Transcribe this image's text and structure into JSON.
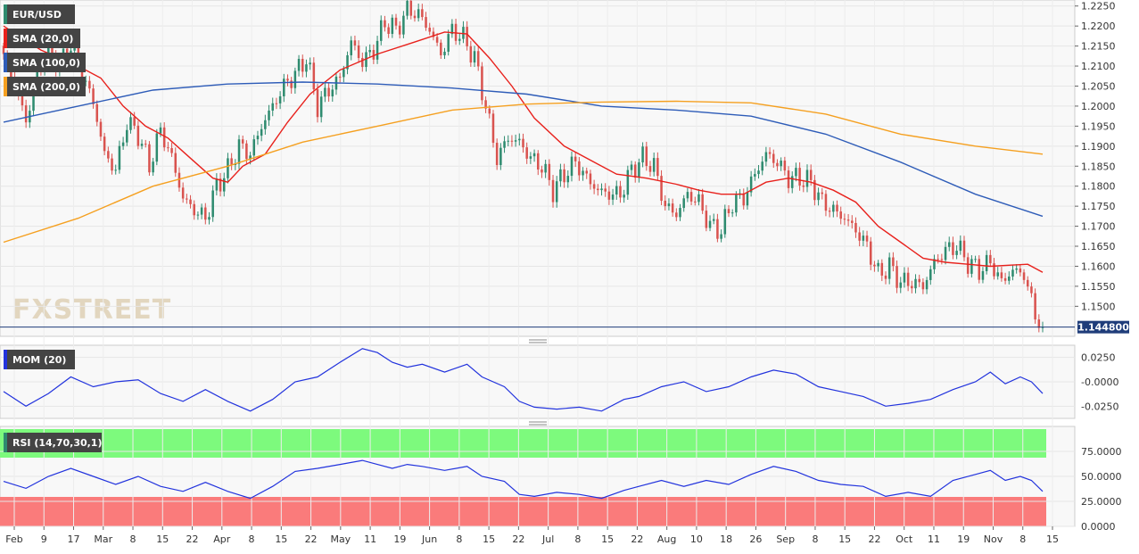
{
  "instrument": "EUR/USD",
  "last_price": "1.144800",
  "watermark": "FXSTREET",
  "colors": {
    "bull": "#2e8b6f",
    "bear": "#d9534f",
    "sma20": "#e8211c",
    "sma100": "#2e5cb8",
    "sma200": "#f5a020",
    "momentum": "#2233dd",
    "rsi": "#2233dd",
    "rsi_overbought_zone": "#7dfa7d",
    "rsi_oversold_zone": "#fa7b7b",
    "price_line": "#1f3d7a"
  },
  "legend": {
    "pair": "EUR/USD",
    "sma20": "SMA (20,0)",
    "sma100": "SMA (100,0)",
    "sma200": "SMA (200,0)",
    "momentum": "MOM (20)",
    "rsi": "RSI (14,70,30,1)"
  },
  "chart_data": [
    {
      "type": "candlestick",
      "title": "EUR/USD",
      "ylim": [
        1.1425,
        1.2265
      ],
      "y_ticks": [
        "1.2250",
        "1.2200",
        "1.2150",
        "1.2100",
        "1.2050",
        "1.2000",
        "1.1950",
        "1.1900",
        "1.1850",
        "1.1800",
        "1.1750",
        "1.1700",
        "1.1650",
        "1.1600",
        "1.1550",
        "1.1500"
      ],
      "x_labels": [
        "Feb",
        "9",
        "17",
        "Mar",
        "8",
        "15",
        "22",
        "Apr",
        "8",
        "15",
        "22",
        "May",
        "11",
        "19",
        "Jun",
        "8",
        "15",
        "22",
        "Jul",
        "8",
        "15",
        "22",
        "Aug",
        "10",
        "18",
        "26",
        "Sep",
        "8",
        "15",
        "22",
        "Oct",
        "11",
        "19",
        "Nov",
        "8",
        "15"
      ],
      "last_value": 1.1448,
      "close_path": [
        [
          0,
          1.212
        ],
        [
          3,
          1.206
        ],
        [
          6,
          1.196
        ],
        [
          9,
          1.209
        ],
        [
          12,
          1.214
        ],
        [
          15,
          1.2105
        ],
        [
          18,
          1.215
        ],
        [
          21,
          1.208
        ],
        [
          24,
          1.201
        ],
        [
          27,
          1.188
        ],
        [
          30,
          1.184
        ],
        [
          33,
          1.196
        ],
        [
          36,
          1.193
        ],
        [
          39,
          1.185
        ],
        [
          42,
          1.194
        ],
        [
          45,
          1.187
        ],
        [
          48,
          1.177
        ],
        [
          51,
          1.174
        ],
        [
          54,
          1.172
        ],
        [
          57,
          1.18
        ],
        [
          60,
          1.184
        ],
        [
          63,
          1.19
        ],
        [
          66,
          1.188
        ],
        [
          69,
          1.195
        ],
        [
          72,
          1.2
        ],
        [
          75,
          1.205
        ],
        [
          78,
          1.208
        ],
        [
          81,
          1.212
        ],
        [
          84,
          1.2
        ],
        [
          87,
          1.204
        ],
        [
          90,
          1.207
        ],
        [
          93,
          1.216
        ],
        [
          96,
          1.211
        ],
        [
          99,
          1.214
        ],
        [
          102,
          1.221
        ],
        [
          105,
          1.219
        ],
        [
          108,
          1.224
        ],
        [
          111,
          1.223
        ],
        [
          114,
          1.219
        ],
        [
          117,
          1.213
        ],
        [
          120,
          1.219
        ],
        [
          123,
          1.217
        ],
        [
          126,
          1.212
        ],
        [
          129,
          1.2
        ],
        [
          132,
          1.187
        ],
        [
          135,
          1.192
        ],
        [
          138,
          1.191
        ],
        [
          141,
          1.187
        ],
        [
          144,
          1.185
        ],
        [
          147,
          1.179
        ],
        [
          150,
          1.183
        ],
        [
          153,
          1.186
        ],
        [
          156,
          1.182
        ],
        [
          159,
          1.179
        ],
        [
          162,
          1.178
        ],
        [
          165,
          1.178
        ],
        [
          168,
          1.184
        ],
        [
          171,
          1.187
        ],
        [
          174,
          1.185
        ],
        [
          177,
          1.175
        ],
        [
          180,
          1.173
        ],
        [
          183,
          1.178
        ],
        [
          186,
          1.176
        ],
        [
          189,
          1.17
        ],
        [
          192,
          1.169
        ],
        [
          195,
          1.176
        ],
        [
          198,
          1.177
        ],
        [
          201,
          1.183
        ],
        [
          204,
          1.188
        ],
        [
          207,
          1.186
        ],
        [
          210,
          1.182
        ],
        [
          213,
          1.182
        ],
        [
          216,
          1.181
        ],
        [
          219,
          1.176
        ],
        [
          222,
          1.174
        ],
        [
          225,
          1.172
        ],
        [
          228,
          1.169
        ],
        [
          231,
          1.165
        ],
        [
          234,
          1.158
        ],
        [
          237,
          1.16
        ],
        [
          240,
          1.156
        ],
        [
          243,
          1.156
        ],
        [
          246,
          1.155
        ],
        [
          249,
          1.161
        ],
        [
          252,
          1.164
        ],
        [
          255,
          1.165
        ],
        [
          258,
          1.161
        ],
        [
          261,
          1.159
        ],
        [
          264,
          1.161
        ],
        [
          267,
          1.156
        ],
        [
          270,
          1.159
        ],
        [
          273,
          1.158
        ],
        [
          276,
          1.148
        ],
        [
          278,
          1.1448
        ]
      ],
      "candle_total": 279,
      "series": [
        {
          "name": "SMA (20,0)",
          "key": "sma20",
          "values": [
            [
              0,
              1.22
            ],
            [
              10,
              1.214
            ],
            [
              20,
              1.21
            ],
            [
              26,
              1.207
            ],
            [
              32,
              1.2
            ],
            [
              38,
              1.195
            ],
            [
              44,
              1.192
            ],
            [
              50,
              1.187
            ],
            [
              56,
              1.182
            ],
            [
              60,
              1.181
            ],
            [
              64,
              1.185
            ],
            [
              70,
              1.188
            ],
            [
              76,
              1.196
            ],
            [
              82,
              1.203
            ],
            [
              90,
              1.209
            ],
            [
              100,
              1.213
            ],
            [
              110,
              1.216
            ],
            [
              118,
              1.2185
            ],
            [
              124,
              1.218
            ],
            [
              130,
              1.212
            ],
            [
              136,
              1.205
            ],
            [
              142,
              1.197
            ],
            [
              150,
              1.19
            ],
            [
              158,
              1.186
            ],
            [
              164,
              1.183
            ],
            [
              172,
              1.182
            ],
            [
              180,
              1.1805
            ],
            [
              186,
              1.179
            ],
            [
              192,
              1.178
            ],
            [
              198,
              1.178
            ],
            [
              204,
              1.181
            ],
            [
              210,
              1.182
            ],
            [
              216,
              1.181
            ],
            [
              222,
              1.179
            ],
            [
              228,
              1.176
            ],
            [
              234,
              1.17
            ],
            [
              240,
              1.166
            ],
            [
              246,
              1.162
            ],
            [
              252,
              1.161
            ],
            [
              258,
              1.1605
            ],
            [
              264,
              1.16
            ],
            [
              270,
              1.1603
            ],
            [
              274,
              1.1605
            ],
            [
              278,
              1.1585
            ]
          ]
        },
        {
          "name": "SMA (100,0)",
          "key": "sma100",
          "values": [
            [
              0,
              1.196
            ],
            [
              20,
              1.2
            ],
            [
              40,
              1.204
            ],
            [
              60,
              1.2055
            ],
            [
              80,
              1.206
            ],
            [
              100,
              1.2055
            ],
            [
              120,
              1.2045
            ],
            [
              140,
              1.203
            ],
            [
              160,
              1.2
            ],
            [
              180,
              1.199
            ],
            [
              200,
              1.1975
            ],
            [
              220,
              1.193
            ],
            [
              240,
              1.186
            ],
            [
              260,
              1.178
            ],
            [
              278,
              1.1725
            ]
          ]
        },
        {
          "name": "SMA (200,0)",
          "key": "sma200",
          "values": [
            [
              0,
              1.166
            ],
            [
              20,
              1.172
            ],
            [
              40,
              1.18
            ],
            [
              60,
              1.185
            ],
            [
              80,
              1.191
            ],
            [
              100,
              1.195
            ],
            [
              120,
              1.199
            ],
            [
              140,
              1.2005
            ],
            [
              160,
              1.201
            ],
            [
              180,
              1.2012
            ],
            [
              200,
              1.2008
            ],
            [
              220,
              1.198
            ],
            [
              240,
              1.193
            ],
            [
              260,
              1.19
            ],
            [
              278,
              1.188
            ]
          ]
        }
      ]
    },
    {
      "type": "line",
      "title": "MOM (20)",
      "ylim": [
        -0.0375,
        0.0375
      ],
      "y_ticks": [
        "0.0250",
        "-0.0000",
        "-0.0250"
      ],
      "series": [
        {
          "name": "MOM (20)",
          "values": [
            [
              0,
              -0.01
            ],
            [
              6,
              -0.025
            ],
            [
              12,
              -0.012
            ],
            [
              18,
              0.005
            ],
            [
              24,
              -0.005
            ],
            [
              30,
              0.0
            ],
            [
              36,
              0.002
            ],
            [
              42,
              -0.012
            ],
            [
              48,
              -0.02
            ],
            [
              54,
              -0.008
            ],
            [
              60,
              -0.02
            ],
            [
              66,
              -0.03
            ],
            [
              72,
              -0.018
            ],
            [
              78,
              0.0
            ],
            [
              84,
              0.005
            ],
            [
              90,
              0.02
            ],
            [
              96,
              0.034
            ],
            [
              100,
              0.03
            ],
            [
              104,
              0.02
            ],
            [
              108,
              0.015
            ],
            [
              112,
              0.018
            ],
            [
              118,
              0.01
            ],
            [
              124,
              0.018
            ],
            [
              128,
              0.005
            ],
            [
              134,
              -0.005
            ],
            [
              138,
              -0.02
            ],
            [
              142,
              -0.026
            ],
            [
              148,
              -0.028
            ],
            [
              154,
              -0.026
            ],
            [
              160,
              -0.03
            ],
            [
              166,
              -0.018
            ],
            [
              170,
              -0.015
            ],
            [
              176,
              -0.005
            ],
            [
              182,
              0.0
            ],
            [
              188,
              -0.01
            ],
            [
              194,
              -0.005
            ],
            [
              200,
              0.005
            ],
            [
              206,
              0.012
            ],
            [
              212,
              0.008
            ],
            [
              218,
              -0.005
            ],
            [
              224,
              -0.01
            ],
            [
              230,
              -0.015
            ],
            [
              236,
              -0.025
            ],
            [
              242,
              -0.022
            ],
            [
              248,
              -0.018
            ],
            [
              254,
              -0.008
            ],
            [
              260,
              0.0
            ],
            [
              264,
              0.01
            ],
            [
              268,
              -0.002
            ],
            [
              272,
              0.005
            ],
            [
              275,
              0.0
            ],
            [
              278,
              -0.012
            ]
          ]
        }
      ]
    },
    {
      "type": "line",
      "title": "RSI (14,70,30,1)",
      "ylim": [
        0,
        100
      ],
      "y_ticks": [
        "75.0000",
        "50.0000",
        "25.0000",
        "0.0000"
      ],
      "overbought": 70,
      "oversold": 30,
      "series": [
        {
          "name": "RSI (14,70,30,1)",
          "values": [
            [
              0,
              45
            ],
            [
              6,
              38
            ],
            [
              12,
              50
            ],
            [
              18,
              58
            ],
            [
              24,
              50
            ],
            [
              30,
              42
            ],
            [
              36,
              50
            ],
            [
              42,
              40
            ],
            [
              48,
              35
            ],
            [
              54,
              44
            ],
            [
              60,
              35
            ],
            [
              66,
              28
            ],
            [
              72,
              40
            ],
            [
              78,
              55
            ],
            [
              84,
              58
            ],
            [
              90,
              62
            ],
            [
              96,
              66
            ],
            [
              100,
              62
            ],
            [
              104,
              58
            ],
            [
              108,
              62
            ],
            [
              112,
              60
            ],
            [
              118,
              56
            ],
            [
              124,
              60
            ],
            [
              128,
              50
            ],
            [
              134,
              45
            ],
            [
              138,
              32
            ],
            [
              142,
              30
            ],
            [
              148,
              34
            ],
            [
              154,
              32
            ],
            [
              160,
              28
            ],
            [
              166,
              36
            ],
            [
              170,
              40
            ],
            [
              176,
              46
            ],
            [
              182,
              40
            ],
            [
              188,
              46
            ],
            [
              194,
              42
            ],
            [
              200,
              52
            ],
            [
              206,
              60
            ],
            [
              212,
              55
            ],
            [
              218,
              46
            ],
            [
              224,
              42
            ],
            [
              230,
              40
            ],
            [
              236,
              30
            ],
            [
              242,
              34
            ],
            [
              248,
              30
            ],
            [
              254,
              46
            ],
            [
              260,
              52
            ],
            [
              264,
              56
            ],
            [
              268,
              46
            ],
            [
              272,
              50
            ],
            [
              275,
              46
            ],
            [
              278,
              35
            ]
          ]
        }
      ]
    }
  ]
}
